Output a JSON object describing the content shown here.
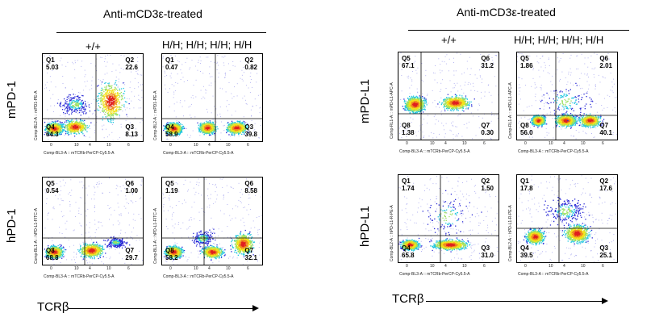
{
  "left_group": {
    "title": "Anti-mCD3ε-treated",
    "col_wt": "+/+",
    "col_hh": "H/H; H/H; H/H; H/H",
    "row_top": "mPD-1",
    "row_bottom": "hPD-1",
    "x_arrow_label": "TCRβ"
  },
  "right_group": {
    "title": "Anti-mCD3ε-treated",
    "col_wt": "+/+",
    "col_hh": "H/H; H/H; H/H; H/H",
    "row_top": "mPD-L1",
    "row_bottom": "hPD-L1",
    "x_arrow_label": "TCRβ"
  },
  "x_ticks": [
    "0",
    "10",
    "4",
    "10",
    "6"
  ],
  "panels": {
    "l_mpd1_wt": {
      "ylabel": "Comp-BL2-A :: mPD1-PE-A",
      "xlabel": "Comp-BL3-A :: mTCRb-PerCP-Cy5.5-A",
      "q_ul_name": "Q1",
      "q_ul_val": "5.03",
      "q_ur_name": "Q2",
      "q_ur_val": "22.6",
      "q_ll_name": "Q4",
      "q_ll_val": "64.3",
      "q_lr_name": "Q3",
      "q_lr_val": "8.13"
    },
    "l_mpd1_hh": {
      "ylabel": "Comp-BL2-A :: mPD1-PE-A",
      "xlabel": "Comp-BL3-A :: mTCRb-PerCP-Cy5.5-A",
      "q_ul_name": "Q1",
      "q_ul_val": "0.47",
      "q_ur_name": "Q2",
      "q_ur_val": "0.82",
      "q_ll_name": "Q4",
      "q_ll_val": "58.9",
      "q_lr_name": "Q3",
      "q_lr_val": "39.8"
    },
    "l_hpd1_wt": {
      "ylabel": "Comp-BL1-A :: hPD-L1-FITC-A",
      "xlabel": "Comp-BL3-A :: mTCRb-PerCP-Cy5.5-A",
      "q_ul_name": "Q5",
      "q_ul_val": "0.54",
      "q_ur_name": "Q6",
      "q_ur_val": "1.00",
      "q_ll_name": "Q8",
      "q_ll_val": "68.8",
      "q_lr_name": "Q7",
      "q_lr_val": "29.7"
    },
    "l_hpd1_hh": {
      "ylabel": "Comp-BL1-A :: hPD-L1-FITC-A",
      "xlabel": "Comp-BL3-A :: mTCRb-PerCP-Cy5.5-A",
      "q_ul_name": "Q5",
      "q_ul_val": "1.19",
      "q_ur_name": "Q6",
      "q_ur_val": "8.58",
      "q_ll_name": "Q8",
      "q_ll_val": "58.2",
      "q_lr_name": "Q7",
      "q_lr_val": "32.1"
    },
    "r_mpdl1_wt": {
      "ylabel": "Comp-RL1-A :: mPD-L1-APC-A",
      "xlabel": "Comp-BL3-A :: mTCRb-PerCP-Cy5.5-A",
      "q_ul_name": "Q5",
      "q_ul_val": "67.1",
      "q_ur_name": "Q6",
      "q_ur_val": "31.2",
      "q_ll_name": "Q8",
      "q_ll_val": "1.38",
      "q_lr_name": "Q7",
      "q_lr_val": "0.30"
    },
    "r_mpdl1_hh": {
      "ylabel": "Comp-RL1-A :: mPD-L1-APC-A",
      "xlabel": "Comp-BL3-A :: mTCRb-PerCP-Cy5.5-A",
      "q_ul_name": "Q5",
      "q_ul_val": "1.86",
      "q_ur_name": "Q6",
      "q_ur_val": "2.01",
      "q_ll_name": "Q8",
      "q_ll_val": "56.0",
      "q_lr_name": "Q7",
      "q_lr_val": "40.1"
    },
    "r_hpdl1_wt": {
      "ylabel": "Comp-BL2-A :: hPD-L1-R-PE-A",
      "xlabel": "Comp-BL3-A :: mTCRb-PerCP-Cy5.5-A",
      "q_ul_name": "Q1",
      "q_ul_val": "1.74",
      "q_ur_name": "Q2",
      "q_ur_val": "1.50",
      "q_ll_name": "Q4",
      "q_ll_val": "65.8",
      "q_lr_name": "Q3",
      "q_lr_val": "31.0"
    },
    "r_hpdl1_hh": {
      "ylabel": "Comp-BL2-A :: hPD-L1-R-PE-A",
      "xlabel": "Comp-BL3-A :: mTCRb-PerCP-Cy5.5-A",
      "q_ul_name": "Q1",
      "q_ul_val": "17.8",
      "q_ur_name": "Q2",
      "q_ur_val": "17.6",
      "q_ll_name": "Q4",
      "q_ll_val": "39.5",
      "q_lr_name": "Q3",
      "q_lr_val": "25.1"
    }
  },
  "colors": {
    "dots_low": "#2b2bd6",
    "dots_mid": "#22c7e0",
    "dots_high": "#f2e21a",
    "dots_peak": "#e02020"
  }
}
